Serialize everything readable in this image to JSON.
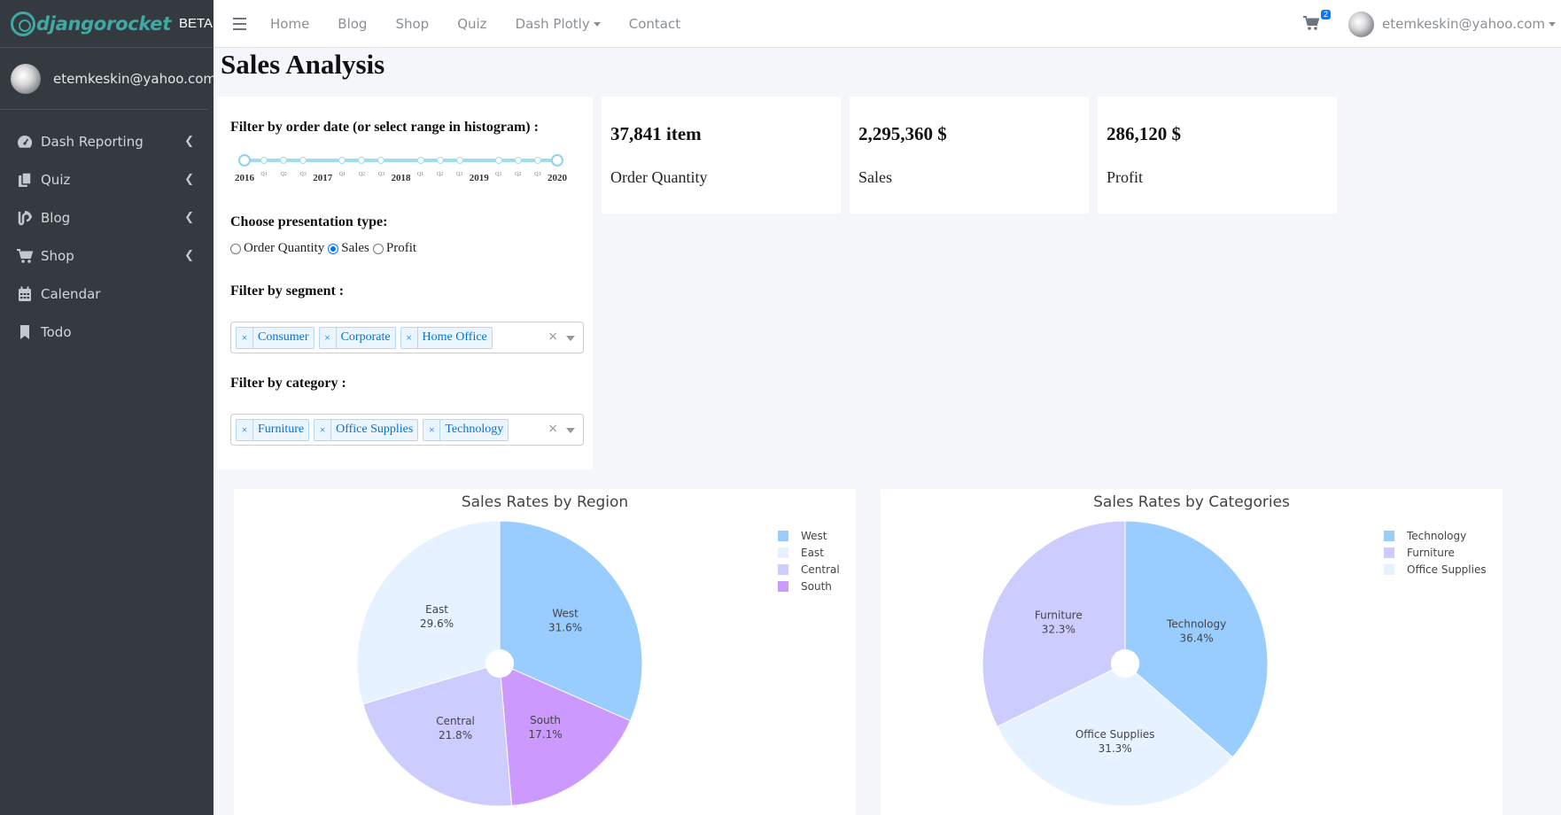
{
  "brand": {
    "name": "djangorocket",
    "badge": "BETA"
  },
  "user": {
    "email": "etemkeskin@yahoo.com"
  },
  "sidebar": {
    "items": [
      {
        "label": "Dash Reporting",
        "icon": "dashboard-icon",
        "has_children": true
      },
      {
        "label": "Quiz",
        "icon": "copy-icon",
        "has_children": true
      },
      {
        "label": "Blog",
        "icon": "blog-icon",
        "has_children": true
      },
      {
        "label": "Shop",
        "icon": "cart-icon",
        "has_children": true
      },
      {
        "label": "Calendar",
        "icon": "calendar-icon",
        "has_children": false
      },
      {
        "label": "Todo",
        "icon": "bookmark-icon",
        "has_children": false
      }
    ]
  },
  "topnav": {
    "items": [
      "Home",
      "Blog",
      "Shop",
      "Quiz",
      "Dash Plotly",
      "Contact"
    ],
    "cart_count": "2"
  },
  "page": {
    "title": "Sales Analysis"
  },
  "filters": {
    "date_label": "Filter by order date (or select range in histogram) :",
    "date_slider": {
      "years": [
        "2016",
        "2017",
        "2018",
        "2019",
        "2020"
      ],
      "quarters": [
        "Q1",
        "Q2",
        "Q3"
      ],
      "selected_start": "2016",
      "selected_end": "2020"
    },
    "presentation_label": "Choose presentation type:",
    "presentation_options": [
      "Order Quantity",
      "Sales",
      "Profit"
    ],
    "presentation_selected": "Sales",
    "segment_label": "Filter by segment :",
    "segments": [
      "Consumer",
      "Corporate",
      "Home Office"
    ],
    "category_label": "Filter by category :",
    "categories": [
      "Furniture",
      "Office Supplies",
      "Technology"
    ]
  },
  "kpis": [
    {
      "value": "37,841 item",
      "label": "Order Quantity"
    },
    {
      "value": "2,295,360 $",
      "label": "Sales"
    },
    {
      "value": "286,120 $",
      "label": "Profit"
    }
  ],
  "chart_data": [
    {
      "type": "pie",
      "title": "Sales Rates by Region",
      "labels": [
        "West",
        "East",
        "Central",
        "South"
      ],
      "values": [
        31.6,
        29.6,
        21.8,
        17.1
      ],
      "slice_order": [
        "West",
        "South",
        "Central",
        "East"
      ],
      "colors": {
        "West": "#99ccff",
        "East": "#e6f2ff",
        "Central": "#ccccff",
        "South": "#cc99ff"
      },
      "hole": true,
      "legend_position": "top-right"
    },
    {
      "type": "pie",
      "title": "Sales Rates by Categories",
      "labels": [
        "Technology",
        "Furniture",
        "Office Supplies"
      ],
      "values": [
        36.4,
        32.3,
        31.3
      ],
      "slice_order": [
        "Technology",
        "Office Supplies",
        "Furniture"
      ],
      "colors": {
        "Technology": "#99ccff",
        "Furniture": "#ccccff",
        "Office Supplies": "#e6f2ff"
      },
      "hole": true,
      "legend_position": "top-right"
    }
  ]
}
